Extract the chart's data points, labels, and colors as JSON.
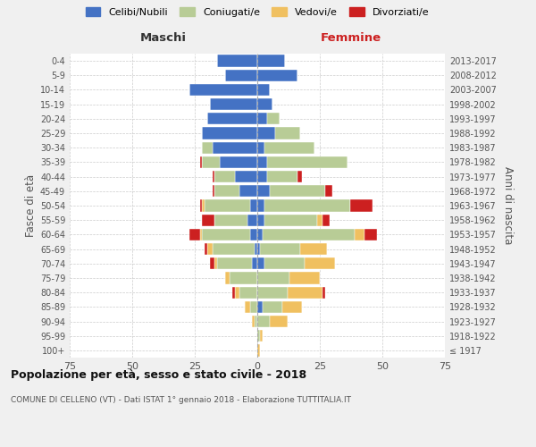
{
  "age_groups": [
    "100+",
    "95-99",
    "90-94",
    "85-89",
    "80-84",
    "75-79",
    "70-74",
    "65-69",
    "60-64",
    "55-59",
    "50-54",
    "45-49",
    "40-44",
    "35-39",
    "30-34",
    "25-29",
    "20-24",
    "15-19",
    "10-14",
    "5-9",
    "0-4"
  ],
  "birth_years": [
    "≤ 1917",
    "1918-1922",
    "1923-1927",
    "1928-1932",
    "1933-1937",
    "1938-1942",
    "1943-1947",
    "1948-1952",
    "1953-1957",
    "1958-1962",
    "1963-1967",
    "1968-1972",
    "1973-1977",
    "1978-1982",
    "1983-1987",
    "1988-1992",
    "1993-1997",
    "1998-2002",
    "2003-2007",
    "2008-2012",
    "2013-2017"
  ],
  "male_celibi": [
    0,
    0,
    0,
    0,
    0,
    0,
    2,
    1,
    3,
    4,
    3,
    7,
    9,
    15,
    18,
    22,
    20,
    19,
    27,
    13,
    16
  ],
  "male_coniugati": [
    0,
    0,
    1,
    3,
    7,
    11,
    14,
    17,
    19,
    13,
    18,
    10,
    8,
    7,
    4,
    0,
    0,
    0,
    0,
    0,
    0
  ],
  "male_vedovi": [
    0,
    0,
    1,
    2,
    2,
    2,
    1,
    2,
    1,
    0,
    1,
    0,
    0,
    0,
    0,
    0,
    0,
    0,
    0,
    0,
    0
  ],
  "male_divorziati": [
    0,
    0,
    0,
    0,
    1,
    0,
    2,
    1,
    4,
    5,
    1,
    1,
    1,
    1,
    0,
    0,
    0,
    0,
    0,
    0,
    0
  ],
  "female_celibi": [
    0,
    0,
    0,
    2,
    0,
    0,
    3,
    1,
    2,
    3,
    3,
    5,
    4,
    4,
    3,
    7,
    4,
    6,
    5,
    16,
    11
  ],
  "female_coniugati": [
    0,
    1,
    5,
    8,
    12,
    13,
    16,
    16,
    37,
    21,
    34,
    22,
    12,
    32,
    20,
    10,
    5,
    0,
    0,
    0,
    0
  ],
  "female_vedovi": [
    1,
    1,
    7,
    8,
    14,
    12,
    12,
    11,
    4,
    2,
    0,
    0,
    0,
    0,
    0,
    0,
    0,
    0,
    0,
    0,
    0
  ],
  "female_divorziati": [
    0,
    0,
    0,
    0,
    1,
    0,
    0,
    0,
    5,
    3,
    9,
    3,
    2,
    0,
    0,
    0,
    0,
    0,
    0,
    0,
    0
  ],
  "colors": {
    "celibi": "#4472c4",
    "coniugati": "#b8cc96",
    "vedovi": "#f0c060",
    "divorziati": "#cc2020"
  },
  "title": "Popolazione per età, sesso e stato civile - 2018",
  "subtitle": "COMUNE DI CELLENO (VT) - Dati ISTAT 1° gennaio 2018 - Elaborazione TUTTITALIA.IT",
  "xlabel_left": "Maschi",
  "xlabel_right": "Femmine",
  "ylabel_left": "Fasce di età",
  "ylabel_right": "Anni di nascita",
  "xlim": 75,
  "legend_labels": [
    "Celibi/Nubili",
    "Coniugati/e",
    "Vedovi/e",
    "Divorziati/e"
  ],
  "bg_color": "#f0f0f0",
  "plot_bg": "#ffffff"
}
